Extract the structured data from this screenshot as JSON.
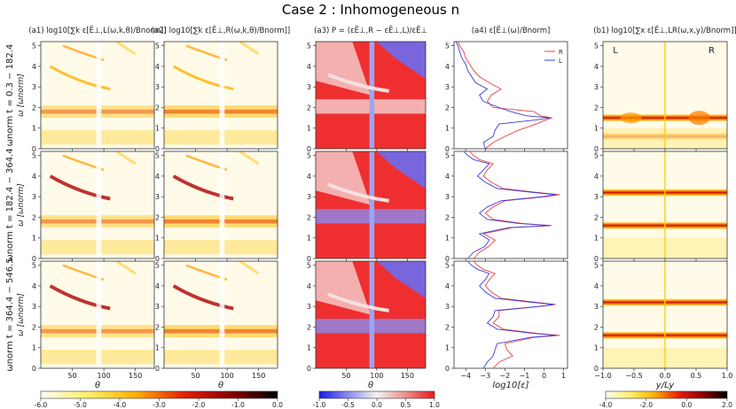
{
  "figure": {
    "title": "Case 2 : Inhomogeneous n",
    "rows": [
      {
        "label": "t = 0.3 − 182.4"
      },
      {
        "label": "t = 182.4 − 364.4"
      },
      {
        "label": "t = 364.4 − 546.5"
      }
    ],
    "omega_norm_label": "ωnorm",
    "panels": [
      {
        "title": "(a1) log10[∑k ε[Ẽ⊥,L(ω,k,θ)/Bnorm]]",
        "xlabel": "θ"
      },
      {
        "title": "(a2) log10[∑k ε[Ẽ⊥,R(ω,k,θ)/Bnorm]]",
        "xlabel": "θ"
      },
      {
        "title": "(a3) P = (εẼ⊥,R − εẼ⊥,L)/εẼ⊥",
        "xlabel": "θ"
      },
      {
        "title": "(a4) ε[Ẽ⊥(ω)/Bnorm]",
        "xlabel": "log10[ε]"
      },
      {
        "title": "(b1) log10[∑x ε[Ẽ⊥,LR(ω,x,y)/Bnorm]]",
        "xlabel": "y/Ly"
      }
    ],
    "ylabel": "ω [ωnorm]"
  },
  "chart_data": [
    {
      "type": "heatmap",
      "id": "a1",
      "x": {
        "label": "θ",
        "lim": [
          0,
          180
        ],
        "ticks": [
          50,
          100,
          150
        ]
      },
      "y": {
        "label": "ω [ωnorm]",
        "lim": [
          0,
          5.2
        ],
        "ticks": [
          0,
          1,
          2,
          3,
          4,
          5
        ]
      },
      "colorbar": {
        "lim": [
          -6.0,
          0.0
        ],
        "ticks": [
          "-6.0",
          "-5.0",
          "-4.0",
          "-3.0",
          "-2.0",
          "-1.0",
          "0.0"
        ],
        "colors": [
          "#fffef2",
          "#fff06b",
          "#ffb000",
          "#e82000",
          "#8e0000",
          "#000000"
        ]
      }
    },
    {
      "type": "heatmap",
      "id": "a2",
      "x": {
        "label": "θ",
        "lim": [
          0,
          180
        ],
        "ticks": [
          50,
          100,
          150
        ]
      },
      "y": {
        "label": "ω [ωnorm]",
        "lim": [
          0,
          5.2
        ],
        "ticks": [
          0,
          1,
          2,
          3,
          4,
          5
        ]
      },
      "colorbar": {
        "shared_with": "a1"
      }
    },
    {
      "type": "heatmap",
      "id": "a3",
      "x": {
        "label": "θ",
        "lim": [
          0,
          180
        ],
        "ticks": [
          50,
          100,
          150
        ]
      },
      "y": {
        "label": "ω [ωnorm]",
        "lim": [
          0,
          5.2
        ],
        "ticks": [
          0,
          1,
          2,
          3,
          4,
          5
        ]
      },
      "colorbar": {
        "lim": [
          -1.0,
          1.0
        ],
        "ticks": [
          "-1.0",
          "-0.5",
          "0.0",
          "0.5",
          "1.0"
        ],
        "colors": [
          "#1a1ae6",
          "#8c8cf0",
          "#f2f2f2",
          "#f08c8c",
          "#e61a1a"
        ]
      }
    },
    {
      "type": "line",
      "id": "a4",
      "x": {
        "label": "log10[ε]",
        "lim": [
          -4.6,
          1.2
        ],
        "ticks": [
          -4,
          -3,
          -2,
          -1,
          0,
          1
        ],
        "tick_labels": [
          "−4",
          "−3",
          "−2",
          "−1",
          "0",
          "1"
        ]
      },
      "y": {
        "lim": [
          0,
          5.2
        ],
        "ticks": [
          0,
          1,
          2,
          3,
          4,
          5
        ]
      },
      "legend": [
        "R",
        "L"
      ],
      "colors": {
        "R": "#e8413c",
        "L": "#3a3ae0"
      },
      "rows": [
        {
          "R": {
            "y": [
              0.0,
              0.3,
              0.6,
              0.9,
              1.2,
              1.4,
              1.5,
              1.6,
              1.8,
              2.0,
              2.3,
              2.6,
              2.9,
              3.2,
              3.5,
              3.8,
              4.1,
              4.4,
              4.7,
              5.0,
              5.2
            ],
            "x": [
              -3.0,
              -2.6,
              -2.0,
              -1.3,
              -0.4,
              0.1,
              0.4,
              -0.2,
              -0.5,
              -2.6,
              -2.9,
              -2.7,
              -2.2,
              -2.8,
              -3.3,
              -3.6,
              -3.8,
              -4.0,
              -4.1,
              -4.3,
              -4.4
            ]
          },
          "L": {
            "y": [
              0.0,
              0.3,
              0.6,
              0.9,
              1.2,
              1.4,
              1.5,
              1.6,
              1.8,
              2.0,
              2.3,
              2.6,
              2.9,
              3.2,
              3.5,
              3.8,
              4.1,
              4.4,
              4.7,
              5.0,
              5.2
            ],
            "x": [
              -3.0,
              -3.1,
              -2.6,
              -2.5,
              -2.3,
              -0.4,
              0.3,
              -0.9,
              -1.7,
              -2.3,
              -3.1,
              -3.3,
              -2.9,
              -3.5,
              -3.7,
              -3.9,
              -4.0,
              -4.2,
              -4.3,
              -4.4,
              -4.5
            ]
          }
        },
        {
          "R": {
            "y": [
              0.0,
              0.3,
              0.6,
              0.9,
              1.2,
              1.5,
              1.6,
              1.7,
              1.9,
              2.2,
              2.5,
              2.8,
              3.0,
              3.1,
              3.2,
              3.4,
              3.7,
              4.0,
              4.3,
              4.6,
              4.8,
              5.0,
              5.2
            ],
            "x": [
              -3.6,
              -3.3,
              -2.8,
              -2.5,
              -3.1,
              -1.6,
              0.4,
              -1.1,
              -2.6,
              -3.0,
              -2.6,
              -2.0,
              0.1,
              0.8,
              -0.3,
              -2.1,
              -2.7,
              -3.1,
              -2.9,
              -2.6,
              -3.3,
              -3.6,
              -3.8
            ]
          },
          "L": {
            "y": [
              0.0,
              0.3,
              0.6,
              0.9,
              1.2,
              1.5,
              1.6,
              1.7,
              1.9,
              2.2,
              2.5,
              2.8,
              3.0,
              3.1,
              3.2,
              3.4,
              3.7,
              4.0,
              4.3,
              4.6,
              4.8,
              5.0,
              5.2
            ],
            "x": [
              -3.9,
              -3.6,
              -3.0,
              -2.8,
              -3.3,
              -1.8,
              0.3,
              -1.3,
              -2.9,
              -3.3,
              -2.9,
              -2.2,
              -0.1,
              0.6,
              -0.5,
              -2.4,
              -3.0,
              -3.4,
              -3.1,
              -2.8,
              -3.6,
              -3.9,
              -4.1
            ]
          }
        },
        {
          "R": {
            "y": [
              0.0,
              0.3,
              0.6,
              0.9,
              1.2,
              1.5,
              1.6,
              1.7,
              1.9,
              2.2,
              2.5,
              2.8,
              3.0,
              3.1,
              3.2,
              3.4,
              3.7,
              4.0,
              4.3,
              4.6,
              4.8,
              5.0,
              5.2
            ],
            "x": [
              -2.6,
              -2.3,
              -1.6,
              -1.9,
              -2.0,
              -0.5,
              0.8,
              -0.4,
              -2.1,
              -2.6,
              -2.3,
              -2.3,
              -0.2,
              0.6,
              -0.4,
              -2.2,
              -2.7,
              -3.0,
              -2.8,
              -2.5,
              -3.1,
              -3.4,
              -3.6
            ]
          },
          "L": {
            "y": [
              0.0,
              0.3,
              0.6,
              0.9,
              1.2,
              1.5,
              1.6,
              1.7,
              1.9,
              2.2,
              2.5,
              2.8,
              3.0,
              3.1,
              3.2,
              3.4,
              3.7,
              4.0,
              4.3,
              4.6,
              4.8,
              5.0,
              5.2
            ],
            "x": [
              -3.1,
              -2.9,
              -2.6,
              -2.5,
              -2.4,
              -0.7,
              0.6,
              -0.6,
              -2.4,
              -2.9,
              -2.6,
              -2.5,
              -0.3,
              0.5,
              -0.6,
              -2.5,
              -3.0,
              -3.3,
              -3.0,
              -2.8,
              -3.4,
              -3.7,
              -3.9
            ]
          }
        }
      ]
    },
    {
      "type": "heatmap",
      "id": "b1",
      "x": {
        "label": "y/Ly",
        "lim": [
          -1.0,
          1.0
        ],
        "ticks": [
          -1.0,
          -0.5,
          0.0,
          0.5,
          1.0
        ],
        "tick_labels": [
          "−1.0",
          "−0.5",
          "0.0",
          "0.5",
          "1.0"
        ]
      },
      "y": {
        "lim": [
          0,
          5.2
        ],
        "ticks": [
          0,
          1,
          2,
          3,
          4,
          5
        ]
      },
      "annotations": [
        "L",
        "R"
      ],
      "colorbar": {
        "lim": [
          -4.0,
          2.0
        ],
        "ticks": [
          "-4.0",
          "-2.0",
          "0.0",
          "2.0"
        ],
        "colors": [
          "#fffef2",
          "#fff06b",
          "#ffb000",
          "#e82000",
          "#8e0000",
          "#000000"
        ]
      }
    }
  ]
}
